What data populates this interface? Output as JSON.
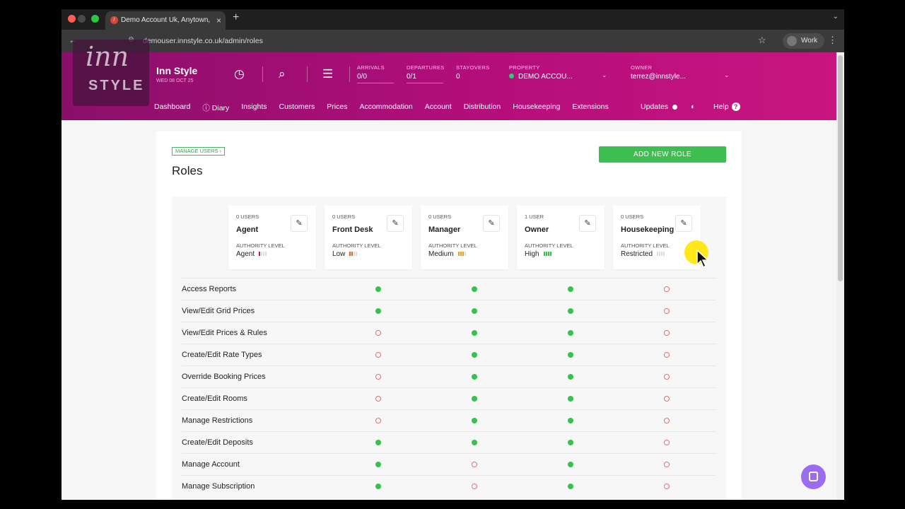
{
  "browser": {
    "tab_title": "Demo Account Uk, Anytown,",
    "favicon": "/",
    "new_tab": "+",
    "url": "demouser.innstyle.co.uk/admin/roles",
    "profile": "Work"
  },
  "app": {
    "logo_top": "inn",
    "logo_bottom": "STYLE",
    "name": "Inn Style",
    "date": "WED 08 OCT 25",
    "stats": {
      "arrivals_label": "ARRIVALS",
      "arrivals_value": "0/0",
      "departures_label": "DEPARTURES",
      "departures_value": "0/1",
      "stayovers_label": "STAYOVERS",
      "stayovers_value": "0",
      "property_label": "PROPERTY",
      "property_value": "DEMO ACCOU...",
      "owner_label": "OWNER",
      "owner_value": "terrez@innstyle..."
    },
    "nav": [
      "Dashboard",
      "Diary",
      "Insights",
      "Customers",
      "Prices",
      "Accommodation",
      "Account",
      "Distribution",
      "Housekeeping",
      "Extensions"
    ],
    "nav_updates": "Updates",
    "nav_help": "Help"
  },
  "page": {
    "breadcrumb": "MANAGE USERS",
    "title": "Roles",
    "add_button": "ADD NEW ROLE",
    "authority_label": "AUTHORITY LEVEL"
  },
  "roles": [
    {
      "users": "0 USERS",
      "name": "Agent",
      "authority": "Agent",
      "level": 1,
      "color": "#c2185b"
    },
    {
      "users": "0 USERS",
      "name": "Front Desk",
      "authority": "Low",
      "level": 2,
      "color": "#e8631f"
    },
    {
      "users": "0 USERS",
      "name": "Manager",
      "authority": "Medium",
      "level": 3,
      "color": "#e9a219"
    },
    {
      "users": "1 USER",
      "name": "Owner",
      "authority": "High",
      "level": 4,
      "color": "#35c24a"
    },
    {
      "users": "0 USERS",
      "name": "Housekeeping",
      "authority": "Restricted",
      "level": 0,
      "color": "#cccccc"
    }
  ],
  "permissions": [
    {
      "name": "Access Reports",
      "values": [
        true,
        true,
        true,
        false
      ]
    },
    {
      "name": "View/Edit Grid Prices",
      "values": [
        true,
        true,
        true,
        false
      ]
    },
    {
      "name": "View/Edit Prices & Rules",
      "values": [
        false,
        true,
        true,
        false
      ]
    },
    {
      "name": "Create/Edit Rate Types",
      "values": [
        false,
        true,
        true,
        false
      ]
    },
    {
      "name": "Override Booking Prices",
      "values": [
        false,
        true,
        true,
        false
      ]
    },
    {
      "name": "Create/Edit Rooms",
      "values": [
        false,
        true,
        true,
        false
      ]
    },
    {
      "name": "Manage Restrictions",
      "values": [
        false,
        true,
        true,
        false
      ]
    },
    {
      "name": "Create/Edit Deposits",
      "values": [
        true,
        true,
        true,
        false
      ]
    },
    {
      "name": "Manage Account",
      "values": [
        true,
        false,
        true,
        false
      ]
    },
    {
      "name": "Manage Subscription",
      "values": [
        true,
        false,
        true,
        false
      ]
    }
  ]
}
